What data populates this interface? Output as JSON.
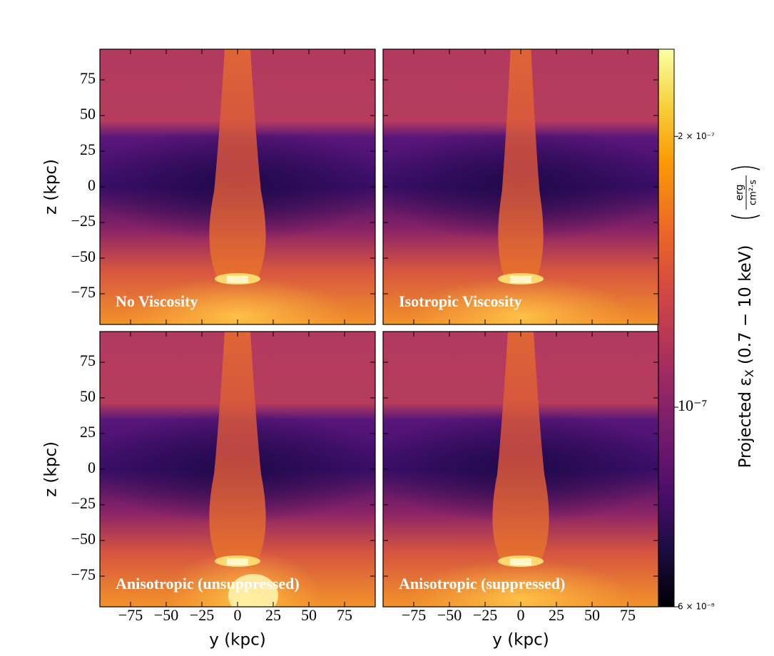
{
  "chart_data": {
    "type": "image-grid",
    "xlabel": "y  (kpc)",
    "ylabel": "z  (kpc)",
    "xlim": [
      -96.5,
      96.5
    ],
    "ylim": [
      -96.5,
      96.5
    ],
    "xticks": [
      {
        "value": -75,
        "label": "−75"
      },
      {
        "value": -50,
        "label": "−50"
      },
      {
        "value": -25,
        "label": "−25"
      },
      0,
      25,
      50,
      75
    ],
    "yticks": [
      {
        "value": -75,
        "label": "−75"
      },
      {
        "value": -50,
        "label": "−50"
      },
      {
        "value": -25,
        "label": "−25"
      },
      0,
      25,
      50,
      75
    ],
    "panels": [
      {
        "title": "No Viscosity"
      },
      {
        "title": "Isotropic Viscosity"
      },
      {
        "title": "Anisotropic (unsuppressed)"
      },
      {
        "title": "Anisotropic (suppressed)"
      }
    ],
    "colorbar": {
      "label_main": "Projected ε",
      "label_sub": "X",
      "label_rest": " (0.7 − 10 keV)",
      "units_num": "erg",
      "units_den": "cm²·s",
      "log": true,
      "lim": [
        6e-08,
        2.5e-07
      ],
      "ticks": [
        {
          "value": 6e-08,
          "label": "6 × 10⁻⁸"
        },
        {
          "value": 1e-07,
          "label": "10⁻⁷"
        },
        {
          "value": 2e-07,
          "label": "2 × 10⁻⁷"
        }
      ]
    }
  }
}
